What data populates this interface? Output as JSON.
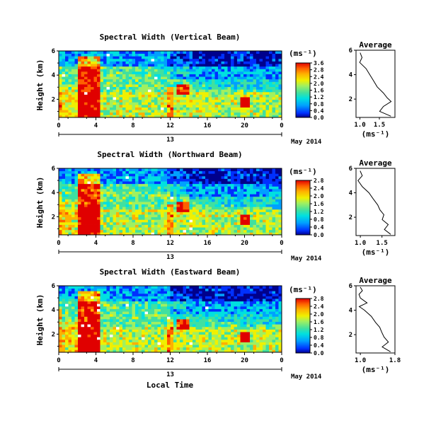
{
  "common": {
    "y_label": "Height (km)",
    "x_tick_labels": [
      "0",
      "4",
      "8",
      "12",
      "16",
      "20",
      "0"
    ],
    "day_label": "13",
    "month_label": "May 2014",
    "x_label": "Local Time",
    "units_label": "(ms⁻¹)",
    "avg_title": "Average",
    "colormap": [
      "#00008c",
      "#0030ff",
      "#00a0ff",
      "#00e0e0",
      "#40e0a0",
      "#a0f060",
      "#f0f000",
      "#ffb000",
      "#ff6000",
      "#e00000"
    ]
  },
  "chart_data": [
    {
      "type": "heatmap",
      "title": "Spectral Width (Vertical Beam)",
      "x_range": [
        0,
        24
      ],
      "y_range": [
        0.5,
        6
      ],
      "y_ticks": [
        2,
        4,
        6
      ],
      "y_tick_labels": [
        "2",
        "4",
        "6"
      ],
      "colorbar_ticks": [
        "0.0",
        "0.4",
        "0.8",
        "1.2",
        "1.6",
        "2.0",
        "2.4",
        "2.8",
        "3.6"
      ],
      "colorbar_range": [
        0,
        3.6
      ],
      "average": {
        "xlim": [
          0.9,
          1.9
        ],
        "ylim": [
          0.5,
          6
        ],
        "x_tick_values": [
          1.0,
          1.5
        ],
        "x_tick_labels": [
          "1.0",
          "1.5"
        ],
        "y_ticks": [
          2,
          4,
          6
        ],
        "height_km": [
          0.6,
          1.0,
          1.4,
          1.8,
          2.1,
          2.5,
          3.0,
          3.5,
          4.0,
          4.5,
          5.0,
          5.4,
          5.8
        ],
        "width_ms": [
          1.8,
          1.5,
          1.6,
          1.8,
          1.7,
          1.6,
          1.45,
          1.35,
          1.25,
          1.15,
          1.0,
          1.05,
          1.0
        ]
      }
    },
    {
      "type": "heatmap",
      "title": "Spectral Width (Northward Beam)",
      "x_range": [
        0,
        24
      ],
      "y_range": [
        0.5,
        6
      ],
      "y_ticks": [
        2,
        4,
        6
      ],
      "y_tick_labels": [
        "2",
        "4",
        "6"
      ],
      "colorbar_ticks": [
        "0.0",
        "0.4",
        "0.8",
        "1.2",
        "1.6",
        "2.0",
        "2.4",
        "2.8"
      ],
      "colorbar_range": [
        0,
        2.8
      ],
      "average": {
        "xlim": [
          0.9,
          1.8
        ],
        "ylim": [
          0.5,
          6
        ],
        "x_tick_values": [
          1.0,
          1.5
        ],
        "x_tick_labels": [
          "1.0",
          "1.5"
        ],
        "y_ticks": [
          2,
          4,
          6
        ],
        "height_km": [
          0.6,
          1.0,
          1.4,
          1.8,
          2.2,
          2.6,
          3.0,
          3.5,
          4.0,
          4.5,
          5.0,
          5.4,
          5.8
        ],
        "width_ms": [
          1.7,
          1.55,
          1.65,
          1.5,
          1.55,
          1.45,
          1.4,
          1.3,
          1.2,
          1.05,
          0.95,
          1.05,
          1.0
        ]
      }
    },
    {
      "type": "heatmap",
      "title": "Spectral Width (Eastward Beam)",
      "x_range": [
        0,
        24
      ],
      "y_range": [
        0.5,
        6
      ],
      "y_ticks": [
        2,
        4,
        6
      ],
      "y_tick_labels": [
        "2",
        "4",
        "6"
      ],
      "colorbar_ticks": [
        "0.0",
        "0.4",
        "0.8",
        "1.2",
        "1.6",
        "2.0",
        "2.4",
        "2.8"
      ],
      "colorbar_range": [
        0,
        2.8
      ],
      "average": {
        "xlim": [
          0.9,
          1.8
        ],
        "ylim": [
          0.5,
          6
        ],
        "x_tick_values": [
          1.0,
          1.8
        ],
        "x_tick_labels": [
          "1.0",
          "1.8"
        ],
        "y_ticks": [
          2,
          4,
          6
        ],
        "height_km": [
          0.6,
          1.0,
          1.4,
          1.8,
          2.2,
          2.6,
          3.0,
          3.5,
          4.0,
          4.3,
          4.6,
          5.0,
          5.3,
          5.6,
          5.9
        ],
        "width_ms": [
          1.7,
          1.5,
          1.65,
          1.55,
          1.5,
          1.45,
          1.35,
          1.25,
          1.1,
          0.98,
          1.15,
          1.0,
          0.97,
          1.05,
          1.0
        ]
      }
    }
  ]
}
